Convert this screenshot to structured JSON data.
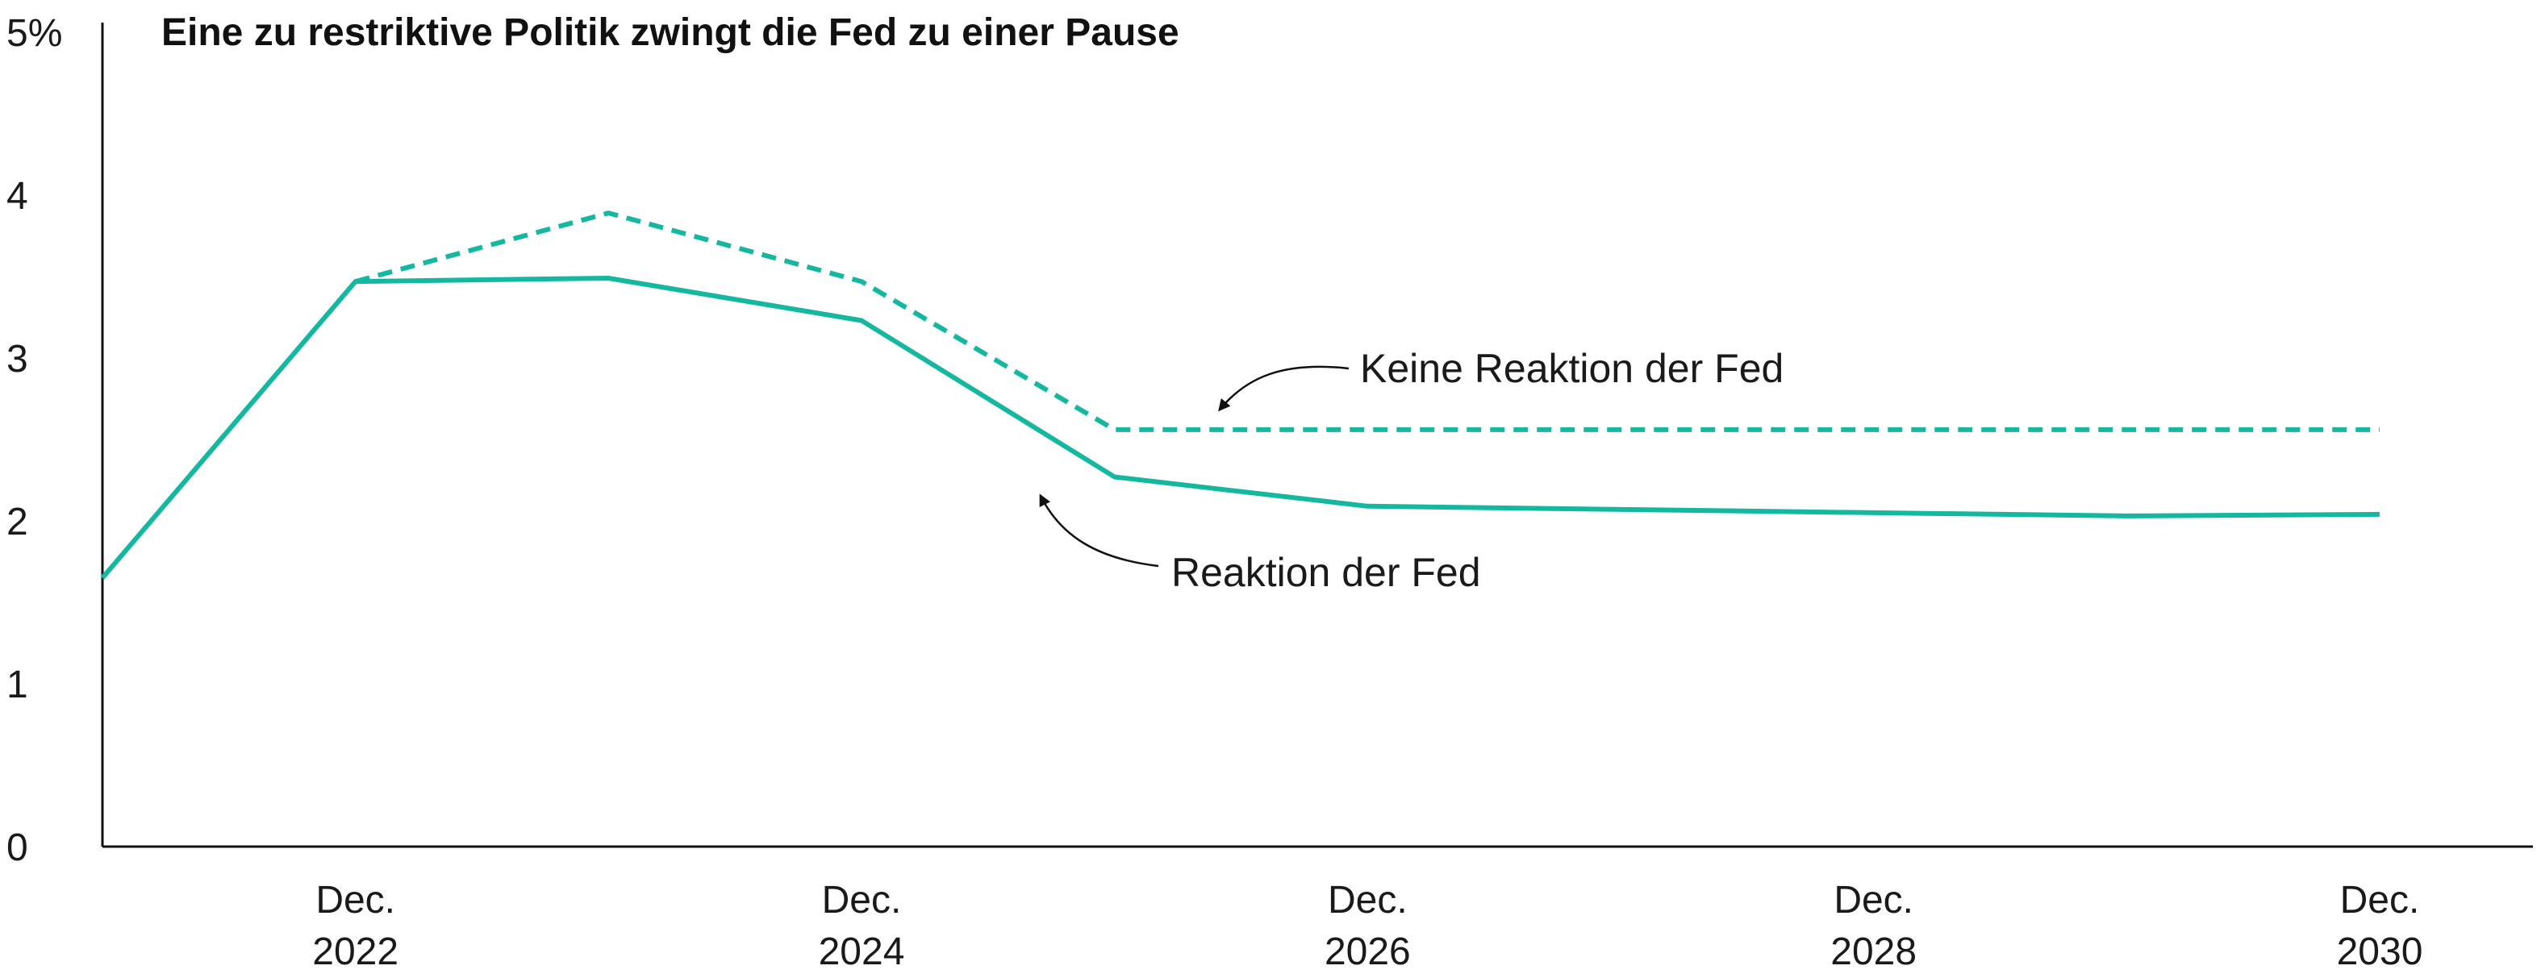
{
  "chart_data": {
    "type": "line",
    "title": "Eine zu restriktive Politik zwingt die Fed zu einer Pause",
    "xlabel": "",
    "ylabel": "",
    "ylim": [
      0,
      5
    ],
    "yticks": [
      {
        "value": 0,
        "label": "0"
      },
      {
        "value": 1,
        "label": "1"
      },
      {
        "value": 2,
        "label": "2"
      },
      {
        "value": 3,
        "label": "3"
      },
      {
        "value": 4,
        "label": "4"
      },
      {
        "value": 5,
        "label": "5%"
      }
    ],
    "xlim": [
      "Dec. 2021",
      "Dec. 2030"
    ],
    "xticks": [
      {
        "value": "Dec. 2022",
        "line1": "Dec.",
        "line2": "2022"
      },
      {
        "value": "Dec. 2024",
        "line1": "Dec.",
        "line2": "2024"
      },
      {
        "value": "Dec. 2026",
        "line1": "Dec.",
        "line2": "2026"
      },
      {
        "value": "Dec. 2028",
        "line1": "Dec.",
        "line2": "2028"
      },
      {
        "value": "Dec. 2030",
        "line1": "Dec.",
        "line2": "2030"
      }
    ],
    "x": [
      "Dec. 2021",
      "Dec. 2022",
      "Dec. 2023",
      "Dec. 2024",
      "Dec. 2025",
      "Dec. 2026",
      "Dec. 2027",
      "Dec. 2028",
      "Dec. 2029",
      "Dec. 2030"
    ],
    "grid": false,
    "legend": "none",
    "series": [
      {
        "name": "Reaktion der Fed",
        "style": "solid",
        "color": "#14b8a0",
        "values": [
          1.65,
          3.47,
          3.49,
          3.23,
          2.27,
          2.09,
          null,
          2.05,
          2.03,
          2.04
        ]
      },
      {
        "name": "Keine Reaktion der Fed",
        "style": "dashed",
        "color": "#14b8a0",
        "values": [
          null,
          3.47,
          3.89,
          3.47,
          2.56,
          null,
          null,
          null,
          null,
          2.56
        ]
      }
    ],
    "annotations": [
      {
        "text": "Keine Reaktion der Fed",
        "series": 1
      },
      {
        "text": "Reaktion der Fed",
        "series": 0
      }
    ]
  }
}
